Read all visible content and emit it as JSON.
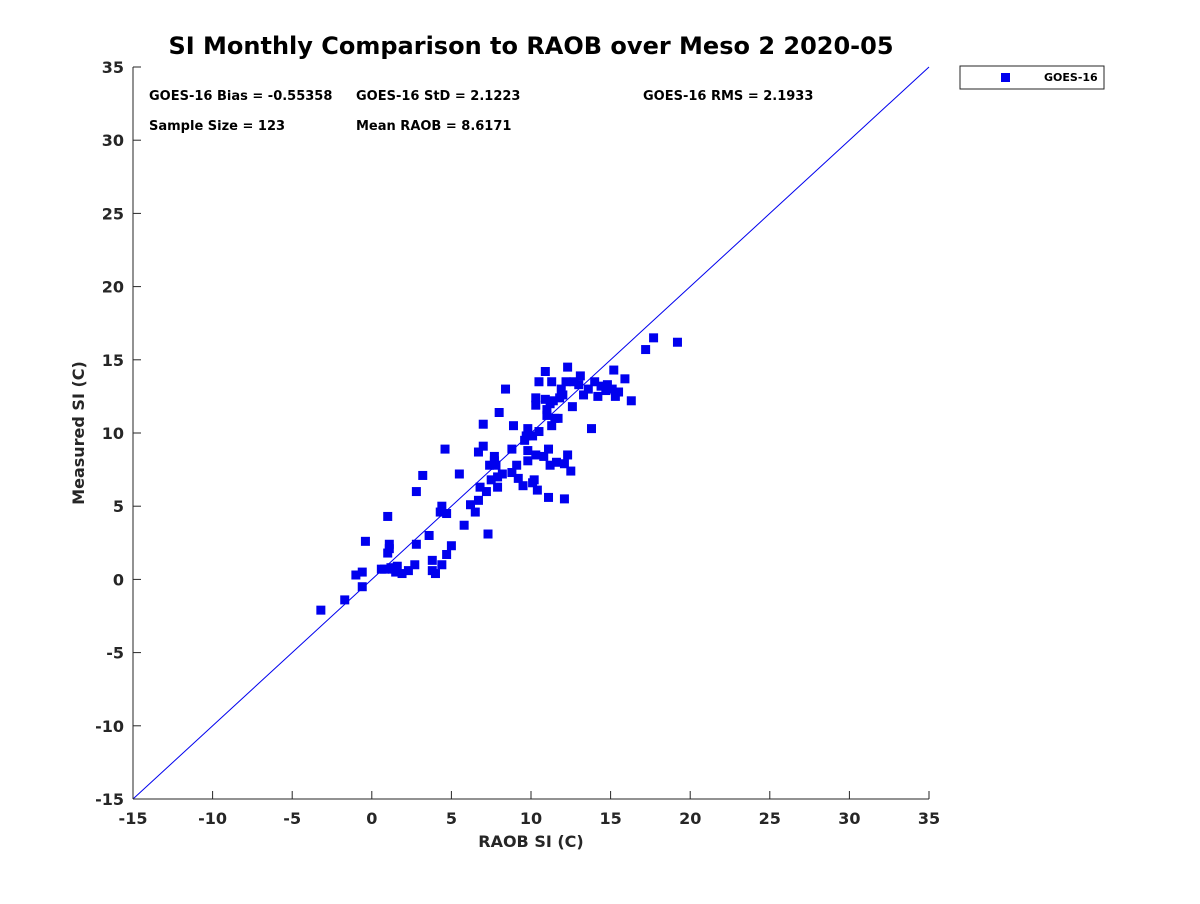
{
  "chart_data": {
    "type": "scatter",
    "title": "SI Monthly Comparison to RAOB over Meso 2 2020-05",
    "xlabel": "RAOB SI (C)",
    "ylabel": "Measured SI (C)",
    "xlim": [
      -15,
      35
    ],
    "ylim": [
      -15,
      35
    ],
    "xticks": [
      "-15",
      "-10",
      "-5",
      "0",
      "5",
      "10",
      "15",
      "20",
      "25",
      "30",
      "35"
    ],
    "yticks": [
      "-15",
      "-10",
      "-5",
      "0",
      "5",
      "10",
      "15",
      "20",
      "25",
      "30",
      "35"
    ],
    "grid": false,
    "legend": {
      "position": "top-right",
      "entries": [
        "GOES-16"
      ]
    },
    "stats": {
      "bias": "GOES-16 Bias = -0.55358",
      "std": "GOES-16 StD = 2.1223",
      "rms": "GOES-16 RMS = 2.1933",
      "sample": "Sample Size = 123",
      "mean": "Mean RAOB = 8.6171"
    },
    "reference_line": {
      "label": "1:1",
      "from": [
        -15,
        -15
      ],
      "to": [
        35,
        35
      ]
    },
    "colors": {
      "series": "#0000ee",
      "line": "#0000ee",
      "axis": "#262626"
    },
    "series": [
      {
        "name": "GOES-16",
        "marker": "square",
        "points": [
          [
            -3.2,
            -2.1
          ],
          [
            -1.7,
            -1.4
          ],
          [
            -1.0,
            0.3
          ],
          [
            -0.6,
            0.5
          ],
          [
            -0.6,
            -0.5
          ],
          [
            -0.4,
            2.6
          ],
          [
            0.6,
            0.7
          ],
          [
            0.8,
            0.7
          ],
          [
            1.0,
            4.3
          ],
          [
            1.0,
            1.8
          ],
          [
            1.1,
            2.1
          ],
          [
            1.1,
            2.4
          ],
          [
            1.2,
            0.8
          ],
          [
            1.3,
            0.7
          ],
          [
            1.5,
            0.5
          ],
          [
            1.6,
            0.9
          ],
          [
            1.9,
            0.4
          ],
          [
            2.3,
            0.6
          ],
          [
            2.7,
            1.0
          ],
          [
            2.8,
            2.4
          ],
          [
            2.8,
            6.0
          ],
          [
            3.2,
            7.1
          ],
          [
            3.6,
            3.0
          ],
          [
            3.8,
            0.6
          ],
          [
            3.8,
            1.3
          ],
          [
            4.0,
            0.4
          ],
          [
            4.3,
            4.6
          ],
          [
            4.4,
            5.0
          ],
          [
            4.4,
            1.0
          ],
          [
            4.6,
            8.9
          ],
          [
            4.7,
            4.5
          ],
          [
            4.7,
            1.7
          ],
          [
            5.0,
            2.3
          ],
          [
            5.5,
            7.2
          ],
          [
            5.8,
            3.7
          ],
          [
            6.2,
            5.1
          ],
          [
            6.5,
            4.6
          ],
          [
            6.7,
            8.7
          ],
          [
            6.7,
            5.4
          ],
          [
            6.8,
            6.3
          ],
          [
            7.0,
            10.6
          ],
          [
            7.0,
            9.1
          ],
          [
            7.2,
            6.0
          ],
          [
            7.3,
            3.1
          ],
          [
            7.4,
            7.8
          ],
          [
            7.5,
            6.8
          ],
          [
            7.7,
            8.1
          ],
          [
            7.7,
            8.4
          ],
          [
            7.8,
            7.8
          ],
          [
            7.9,
            6.3
          ],
          [
            7.9,
            7.0
          ],
          [
            8.0,
            11.4
          ],
          [
            8.2,
            7.2
          ],
          [
            8.4,
            13.0
          ],
          [
            8.8,
            7.3
          ],
          [
            8.8,
            8.9
          ],
          [
            8.9,
            10.5
          ],
          [
            9.1,
            7.8
          ],
          [
            9.2,
            6.9
          ],
          [
            9.5,
            6.4
          ],
          [
            9.6,
            9.5
          ],
          [
            9.7,
            9.8
          ],
          [
            9.8,
            10.3
          ],
          [
            9.8,
            8.1
          ],
          [
            9.8,
            8.8
          ],
          [
            10.1,
            9.8
          ],
          [
            10.1,
            6.6
          ],
          [
            10.2,
            6.8
          ],
          [
            10.3,
            12.4
          ],
          [
            10.3,
            11.9
          ],
          [
            10.3,
            8.5
          ],
          [
            10.4,
            6.1
          ],
          [
            10.5,
            13.5
          ],
          [
            10.5,
            10.1
          ],
          [
            10.8,
            8.4
          ],
          [
            10.9,
            14.2
          ],
          [
            10.9,
            12.3
          ],
          [
            11.0,
            11.2
          ],
          [
            11.0,
            11.6
          ],
          [
            11.1,
            5.6
          ],
          [
            11.1,
            8.9
          ],
          [
            11.2,
            7.8
          ],
          [
            11.2,
            12.0
          ],
          [
            11.3,
            13.5
          ],
          [
            11.3,
            10.5
          ],
          [
            11.4,
            12.2
          ],
          [
            11.5,
            11.0
          ],
          [
            11.6,
            8.0
          ],
          [
            11.7,
            11.0
          ],
          [
            11.8,
            12.4
          ],
          [
            11.9,
            13.0
          ],
          [
            12.0,
            12.6
          ],
          [
            12.1,
            7.9
          ],
          [
            12.1,
            5.5
          ],
          [
            12.2,
            13.5
          ],
          [
            12.3,
            14.5
          ],
          [
            12.3,
            8.5
          ],
          [
            12.5,
            7.4
          ],
          [
            12.6,
            11.8
          ],
          [
            12.7,
            13.5
          ],
          [
            13.0,
            13.3
          ],
          [
            13.1,
            13.9
          ],
          [
            13.3,
            12.6
          ],
          [
            13.6,
            13.0
          ],
          [
            13.8,
            10.3
          ],
          [
            14.0,
            13.5
          ],
          [
            14.2,
            12.5
          ],
          [
            14.4,
            13.2
          ],
          [
            14.7,
            12.9
          ],
          [
            14.8,
            13.3
          ],
          [
            15.1,
            13.0
          ],
          [
            15.2,
            14.3
          ],
          [
            15.3,
            12.5
          ],
          [
            15.5,
            12.8
          ],
          [
            15.9,
            13.7
          ],
          [
            16.3,
            12.2
          ],
          [
            17.2,
            15.7
          ],
          [
            17.7,
            16.5
          ],
          [
            19.2,
            16.2
          ]
        ]
      }
    ]
  }
}
